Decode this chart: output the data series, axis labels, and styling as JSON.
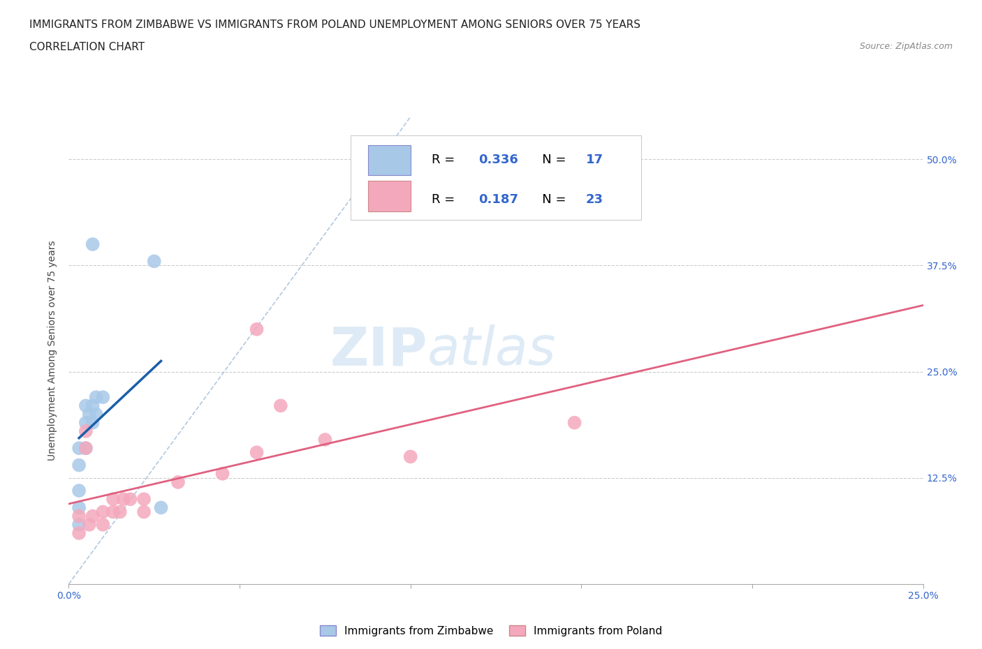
{
  "title_line1": "IMMIGRANTS FROM ZIMBABWE VS IMMIGRANTS FROM POLAND UNEMPLOYMENT AMONG SENIORS OVER 75 YEARS",
  "title_line2": "CORRELATION CHART",
  "source_text": "Source: ZipAtlas.com",
  "ylabel": "Unemployment Among Seniors over 75 years",
  "watermark_zip": "ZIP",
  "watermark_atlas": "atlas",
  "xlim": [
    0.0,
    0.25
  ],
  "ylim": [
    0.0,
    0.55
  ],
  "xtick_vals": [
    0.0,
    0.05,
    0.1,
    0.15,
    0.2,
    0.25
  ],
  "ytick_vals": [
    0.0,
    0.125,
    0.25,
    0.375,
    0.5
  ],
  "zimbabwe_color": "#a8c8e8",
  "poland_color": "#f4a8bc",
  "zimbabwe_edge_color": "#a8c8e8",
  "poland_edge_color": "#f4a8bc",
  "zimbabwe_line_color": "#1a5faa",
  "poland_line_color": "#e06080",
  "R_zimbabwe": "0.336",
  "N_zimbabwe": "17",
  "R_poland": "0.187",
  "N_poland": "23",
  "background_color": "#ffffff",
  "grid_color": "#cccccc",
  "tick_color": "#3366cc",
  "label_color": "#444444",
  "title_color": "#222222",
  "source_color": "#888888",
  "legend_r_color": "#000000",
  "legend_val_color": "#3366cc",
  "zimbabwe_scatter_x": [
    0.003,
    0.003,
    0.003,
    0.003,
    0.003,
    0.005,
    0.005,
    0.005,
    0.006,
    0.007,
    0.007,
    0.007,
    0.008,
    0.008,
    0.01,
    0.025,
    0.027
  ],
  "zimbabwe_scatter_y": [
    0.07,
    0.09,
    0.11,
    0.14,
    0.16,
    0.16,
    0.19,
    0.21,
    0.2,
    0.19,
    0.21,
    0.4,
    0.2,
    0.22,
    0.22,
    0.38,
    0.09
  ],
  "poland_scatter_x": [
    0.003,
    0.003,
    0.005,
    0.005,
    0.006,
    0.007,
    0.01,
    0.01,
    0.013,
    0.013,
    0.015,
    0.016,
    0.018,
    0.022,
    0.022,
    0.032,
    0.045,
    0.055,
    0.055,
    0.062,
    0.075,
    0.1,
    0.148
  ],
  "poland_scatter_y": [
    0.06,
    0.08,
    0.16,
    0.18,
    0.07,
    0.08,
    0.07,
    0.085,
    0.085,
    0.1,
    0.085,
    0.1,
    0.1,
    0.085,
    0.1,
    0.12,
    0.13,
    0.155,
    0.3,
    0.21,
    0.17,
    0.15,
    0.19
  ],
  "title_fontsize": 11,
  "axis_label_fontsize": 10,
  "tick_fontsize": 10,
  "legend_fontsize": 13,
  "source_fontsize": 9,
  "scatter_size": 200
}
